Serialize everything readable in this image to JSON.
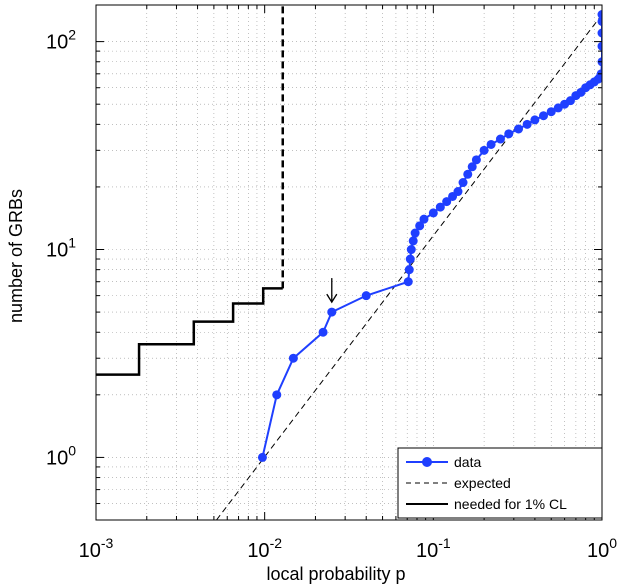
{
  "chart_data": {
    "type": "line",
    "title": "",
    "xlabel": "local probability p",
    "ylabel": "number of GRBs",
    "xscale": "log",
    "yscale": "log",
    "xlim": [
      0.001,
      1
    ],
    "ylim": [
      0.5,
      150
    ],
    "grid": true,
    "legend_position": "bottom-right",
    "x_ticks": [
      {
        "value": 0.001,
        "base": "10",
        "exp": "-3"
      },
      {
        "value": 0.01,
        "base": "10",
        "exp": "-2"
      },
      {
        "value": 0.1,
        "base": "10",
        "exp": "-1"
      },
      {
        "value": 1,
        "base": "10",
        "exp": "0"
      }
    ],
    "y_ticks": [
      {
        "value": 1,
        "base": "10",
        "exp": "0"
      },
      {
        "value": 10,
        "base": "10",
        "exp": "1"
      },
      {
        "value": 100,
        "base": "10",
        "exp": "2"
      }
    ],
    "series": [
      {
        "name": "data",
        "style": "solid-markers",
        "color": "#1f3fff",
        "x": [
          0.0097,
          0.0118,
          0.0148,
          0.0222,
          0.025,
          0.04,
          0.071,
          0.072,
          0.073,
          0.074,
          0.076,
          0.078,
          0.083,
          0.088,
          0.1,
          0.11,
          0.12,
          0.13,
          0.14,
          0.15,
          0.16,
          0.17,
          0.18,
          0.2,
          0.22,
          0.25,
          0.28,
          0.32,
          0.36,
          0.4,
          0.45,
          0.5,
          0.55,
          0.6,
          0.65,
          0.7,
          0.75,
          0.8,
          0.85,
          0.9,
          0.95,
          0.97,
          0.98,
          0.99,
          1.0,
          1.0,
          1.0,
          1.0,
          1.0
        ],
        "y": [
          1,
          2,
          3,
          4,
          5,
          6,
          7,
          8,
          9,
          10,
          11,
          12,
          13,
          14,
          15,
          16,
          17,
          18,
          19,
          21,
          23,
          25,
          27,
          30,
          32,
          34,
          36,
          38,
          40,
          42,
          44,
          46,
          48,
          50,
          52,
          55,
          57,
          60,
          62,
          64,
          66,
          67,
          68,
          70,
          80,
          95,
          110,
          125,
          135
        ]
      },
      {
        "name": "expected",
        "style": "dashed",
        "color": "#000000",
        "x": [
          0.00518,
          1.0
        ],
        "y": [
          0.5,
          135
        ]
      },
      {
        "name": "needed for 1% CL",
        "style": "solid-step",
        "color": "#000000",
        "x": [
          0.001,
          0.0018,
          0.0018,
          0.0038,
          0.0038,
          0.0065,
          0.0065,
          0.0098,
          0.0098,
          0.0128,
          0.0128
        ],
        "y": [
          2.5,
          2.5,
          3.5,
          3.5,
          4.5,
          4.5,
          5.5,
          5.5,
          6.5,
          6.5,
          150
        ]
      }
    ],
    "annotations": [
      {
        "type": "arrow",
        "target_x": 0.025,
        "target_y": 5.0,
        "direction": "down"
      }
    ]
  }
}
